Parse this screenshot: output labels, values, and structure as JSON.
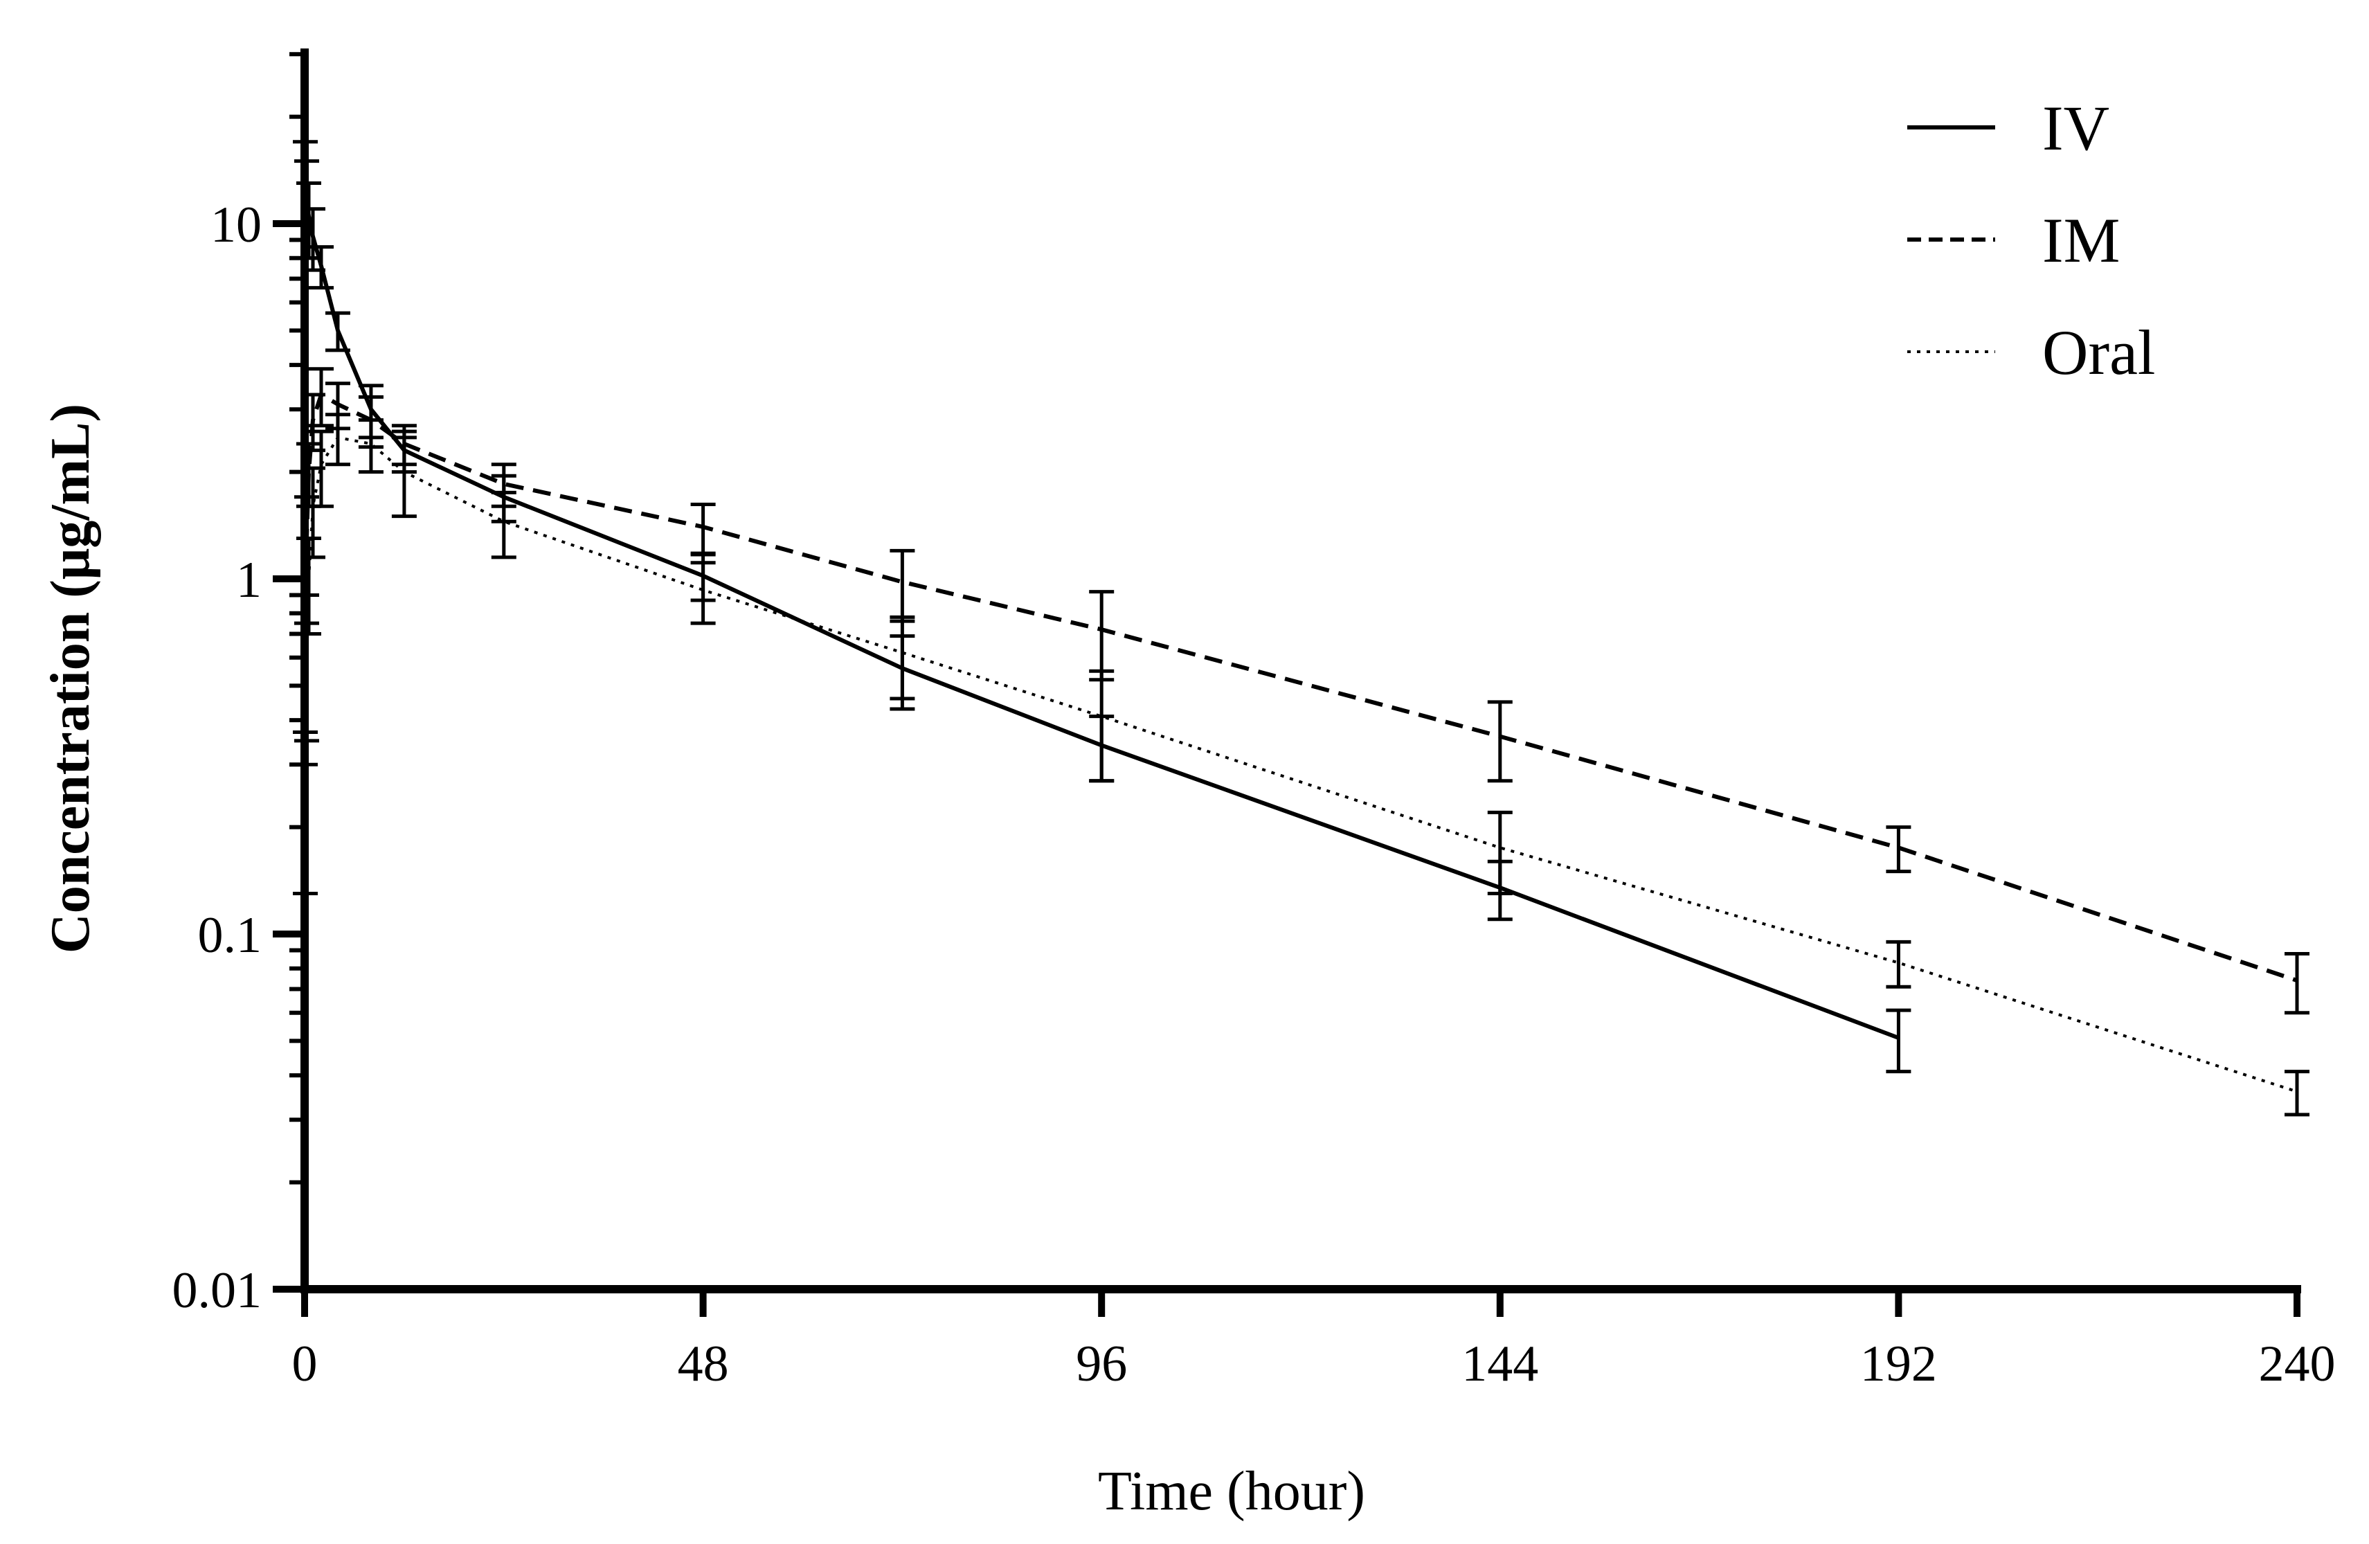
{
  "chart_data": {
    "type": "line",
    "title": "",
    "xlabel": "Time (hour)",
    "ylabel": "Concentration (μg/mL)",
    "xlim": [
      0,
      240
    ],
    "ylim": [
      0.01,
      30
    ],
    "yscale": "log",
    "xticks": [
      0,
      48,
      96,
      144,
      192,
      240
    ],
    "xtick_labels": [
      "0",
      "48",
      "96",
      "144",
      "192",
      "240"
    ],
    "yticks": [
      0.01,
      0.1,
      1,
      10
    ],
    "ytick_labels": [
      "0.01",
      "0.1",
      "1",
      "10"
    ],
    "legend_position": "top-right",
    "series": [
      {
        "name": "IV",
        "style": "solid",
        "x": [
          0.083,
          0.25,
          0.5,
          1,
          2,
          4,
          8,
          12,
          24,
          48,
          72,
          96,
          144,
          192
        ],
        "y": [
          12.5,
          11.5,
          10.5,
          9.2,
          7.6,
          5.0,
          3.0,
          2.3,
          1.7,
          1.02,
          0.56,
          0.34,
          0.135,
          0.051
        ],
        "err": [
          4.5,
          3.5,
          2.5,
          1.8,
          1.0,
          0.6,
          0.5,
          0.3,
          0.25,
          0.15,
          0.13,
          0.07,
          0.025,
          0.01
        ]
      },
      {
        "name": "IM",
        "style": "dashed",
        "x": [
          0.083,
          0.25,
          0.5,
          1,
          2,
          4,
          8,
          12,
          24,
          48,
          72,
          96,
          144,
          192,
          240
        ],
        "y": [
          0.6,
          1.3,
          2.0,
          2.8,
          3.3,
          3.1,
          2.8,
          2.4,
          1.85,
          1.4,
          0.98,
          0.72,
          0.36,
          0.175,
          0.074
        ],
        "err": [
          0.3,
          0.4,
          0.4,
          0.5,
          0.6,
          0.45,
          0.45,
          0.3,
          0.25,
          0.22,
          0.22,
          0.2,
          0.09,
          0.025,
          0.014
        ]
      },
      {
        "name": "Oral",
        "style": "dotted",
        "x": [
          0.083,
          0.25,
          0.5,
          1,
          2,
          4,
          8,
          12,
          24,
          48,
          72,
          96,
          144,
          192,
          240
        ],
        "y": [
          0.25,
          0.55,
          1.0,
          1.6,
          2.1,
          2.5,
          2.4,
          2.0,
          1.45,
          0.93,
          0.62,
          0.41,
          0.175,
          0.083,
          0.036
        ],
        "err": [
          0.12,
          0.2,
          0.3,
          0.45,
          0.5,
          0.4,
          0.4,
          0.5,
          0.3,
          0.18,
          0.16,
          0.14,
          0.045,
          0.012,
          0.005
        ]
      }
    ]
  }
}
